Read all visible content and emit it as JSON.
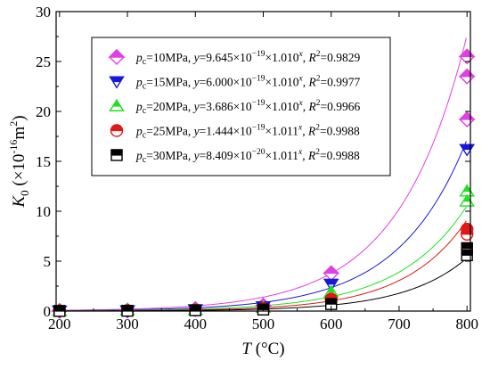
{
  "chart_data": {
    "type": "scatter",
    "xlabel": "T (°C)",
    "ylabel": "K0 (×10⁻¹⁶m²)",
    "xlim": [
      195,
      805
    ],
    "ylim": [
      0,
      30
    ],
    "x_ticks": [
      "200",
      "300",
      "400",
      "500",
      "600",
      "700",
      "800"
    ],
    "y_ticks": [
      "0",
      "5",
      "10",
      "15",
      "20",
      "25",
      "30"
    ],
    "grid": false,
    "legend_position": "top-left",
    "series": [
      {
        "name": "pc=10MPa, y=9.645×10⁻¹⁹×1.010x, R²=0.9829",
        "label": {
          "p": "p",
          "sub": "c",
          "mid": "=10MPa, ",
          "y": "y",
          "eq": "=9.645×10",
          "exp": "−19",
          "base": "×1.010",
          "xsup": "x",
          "sep": ", ",
          "r": "R",
          "r2": "2",
          "val": "=0.9829"
        },
        "color": "#e040e0",
        "marker": "diamond",
        "points": [
          [
            200,
            0.02
          ],
          [
            300,
            0.05
          ],
          [
            400,
            0.2
          ],
          [
            500,
            0.55
          ],
          [
            600,
            3.8
          ],
          [
            800,
            25.5
          ],
          [
            800,
            23.5
          ],
          [
            800,
            19.2
          ]
        ],
        "fit": {
          "a": 9.645e-19,
          "b": 1.01
        }
      },
      {
        "name": "pc=15MPa, y=6.000×10⁻¹⁹×1.010x, R²=0.9977",
        "label": {
          "p": "p",
          "sub": "c",
          "mid": "=15MPa, ",
          "y": "y",
          "eq": "=6.000×10",
          "exp": "−19",
          "base": "×1.010",
          "xsup": "x",
          "sep": ", ",
          "r": "R",
          "r2": "2",
          "val": "=0.9977"
        },
        "color": "#1818d8",
        "marker": "triangle-down",
        "points": [
          [
            200,
            0.02
          ],
          [
            300,
            0.04
          ],
          [
            400,
            0.15
          ],
          [
            500,
            0.45
          ],
          [
            600,
            2.7
          ],
          [
            800,
            16.2
          ]
        ],
        "fit": {
          "a": 6e-19,
          "b": 1.01
        }
      },
      {
        "name": "pc=20MPa, y=3.686×10⁻¹⁹×1.010x, R²=0.9966",
        "label": {
          "p": "p",
          "sub": "c",
          "mid": "=20MPa, ",
          "y": "y",
          "eq": "=3.686×10",
          "exp": "−19",
          "base": "×1.010",
          "xsup": "x",
          "sep": ", ",
          "r": "R",
          "r2": "2",
          "val": "=0.9966"
        },
        "color": "#20e020",
        "marker": "triangle-up",
        "points": [
          [
            200,
            0.02
          ],
          [
            300,
            0.1
          ],
          [
            400,
            0.12
          ],
          [
            500,
            0.35
          ],
          [
            600,
            1.9
          ],
          [
            800,
            12.0
          ],
          [
            800,
            11.0
          ]
        ],
        "fit": {
          "a": 3.686e-19,
          "b": 1.01
        }
      },
      {
        "name": "pc=25MPa, y=1.444×10⁻¹⁹×1.011x, R²=0.9988",
        "label": {
          "p": "p",
          "sub": "c",
          "mid": "=25MPa, ",
          "y": "y",
          "eq": "=1.444×10",
          "exp": "−19",
          "base": "×1.011",
          "xsup": "x",
          "sep": ", ",
          "r": "R",
          "r2": "2",
          "val": "=0.9988"
        },
        "color": "#e01818",
        "marker": "half-circle",
        "points": [
          [
            200,
            0.02
          ],
          [
            300,
            0.05
          ],
          [
            400,
            0.1
          ],
          [
            500,
            0.25
          ],
          [
            600,
            1.2
          ],
          [
            800,
            8.2
          ],
          [
            800,
            7.7
          ]
        ],
        "fit": {
          "a": 1.444e-19,
          "b": 1.011
        }
      },
      {
        "name": "pc=30MPa, y=8.409×10⁻²⁰×1.011x, R²=0.9988",
        "label": {
          "p": "p",
          "sub": "c",
          "mid": "=30MPa, ",
          "y": "y",
          "eq": "=8.409×10",
          "exp": "−20",
          "base": "×1.011",
          "xsup": "x",
          "sep": ", ",
          "r": "R",
          "r2": "2",
          "val": "=0.9988"
        },
        "color": "#000000",
        "marker": "half-square",
        "points": [
          [
            200,
            0.01
          ],
          [
            300,
            0.03
          ],
          [
            400,
            0.08
          ],
          [
            500,
            0.15
          ],
          [
            600,
            0.7
          ],
          [
            800,
            6.3
          ],
          [
            800,
            5.6
          ]
        ],
        "fit": {
          "a": 8.409e-20,
          "b": 1.011
        }
      }
    ]
  }
}
